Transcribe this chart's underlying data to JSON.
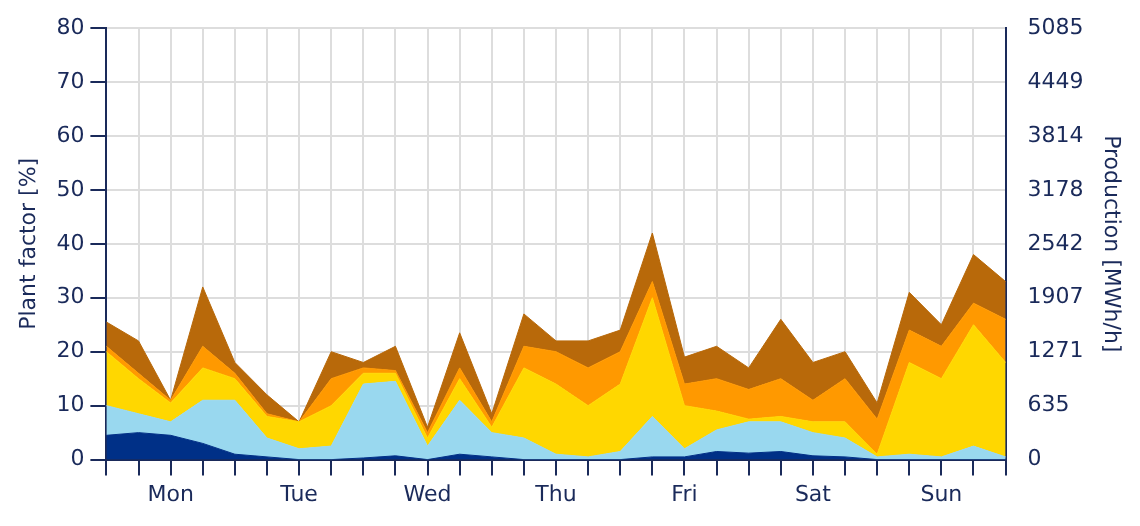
{
  "chart_data": {
    "type": "area",
    "stacked": true,
    "ylabel": "Plant factor [%]",
    "y2label": "Production [MWh/h]",
    "categories": [
      null,
      null,
      "Mon",
      null,
      null,
      null,
      "Tue",
      null,
      null,
      null,
      "Wed",
      null,
      null,
      null,
      "Thu",
      null,
      null,
      null,
      "Fri",
      null,
      null,
      null,
      "Sat",
      null,
      null,
      null,
      "Sun",
      null,
      null
    ],
    "ylim": [
      0,
      80
    ],
    "yticks": [
      0,
      10,
      20,
      30,
      40,
      50,
      60,
      70,
      80
    ],
    "y2lim": [
      0,
      5085
    ],
    "y2ticks": [
      0,
      635,
      1271,
      1907,
      2542,
      3178,
      3814,
      4449,
      5085
    ],
    "grid": true,
    "legend": false,
    "series": [
      {
        "color": "#003087",
        "values": [
          4.5,
          5,
          4.5,
          3,
          1,
          0.5,
          0,
          0,
          0.3,
          0.7,
          0,
          1,
          0.5,
          0,
          0,
          0,
          0,
          0.5,
          0.5,
          1.5,
          1.2,
          1.5,
          0.7,
          0.5,
          0,
          0,
          0,
          0,
          0
        ]
      },
      {
        "color": "#99d8ef",
        "values": [
          5.5,
          3.5,
          2.5,
          8,
          10,
          3.5,
          2,
          2.5,
          13.7,
          13.8,
          2.5,
          10,
          4.5,
          4,
          1,
          0.5,
          1.5,
          7.5,
          1.5,
          4,
          5.8,
          5.5,
          4.3,
          3.5,
          0.5,
          1,
          0.5,
          2.5,
          0.5
        ]
      },
      {
        "color": "#ffd700",
        "values": [
          10,
          6.5,
          3.5,
          6,
          4,
          4,
          5,
          7.5,
          2,
          1.5,
          1.5,
          4,
          1,
          13,
          13,
          9.5,
          12.5,
          22,
          8,
          3.5,
          0.5,
          1,
          2,
          3,
          0.5,
          17,
          14.5,
          22.5,
          17.5
        ]
      },
      {
        "color": "#ff9900",
        "values": [
          1,
          1,
          0.5,
          4,
          1,
          0.5,
          0,
          5,
          1,
          0.5,
          1,
          2,
          1,
          4,
          6,
          7,
          6,
          3,
          4,
          6,
          5.5,
          7,
          4,
          8,
          6.5,
          6,
          6,
          4,
          8
        ]
      },
      {
        "color": "#b8690a",
        "values": [
          4.5,
          6,
          0,
          11,
          2,
          3.5,
          0,
          5,
          1,
          4.5,
          1,
          6.5,
          1.5,
          6,
          2,
          5,
          4,
          9,
          5,
          6,
          4,
          11,
          7,
          5,
          3,
          7,
          4,
          9,
          7
        ]
      }
    ]
  }
}
